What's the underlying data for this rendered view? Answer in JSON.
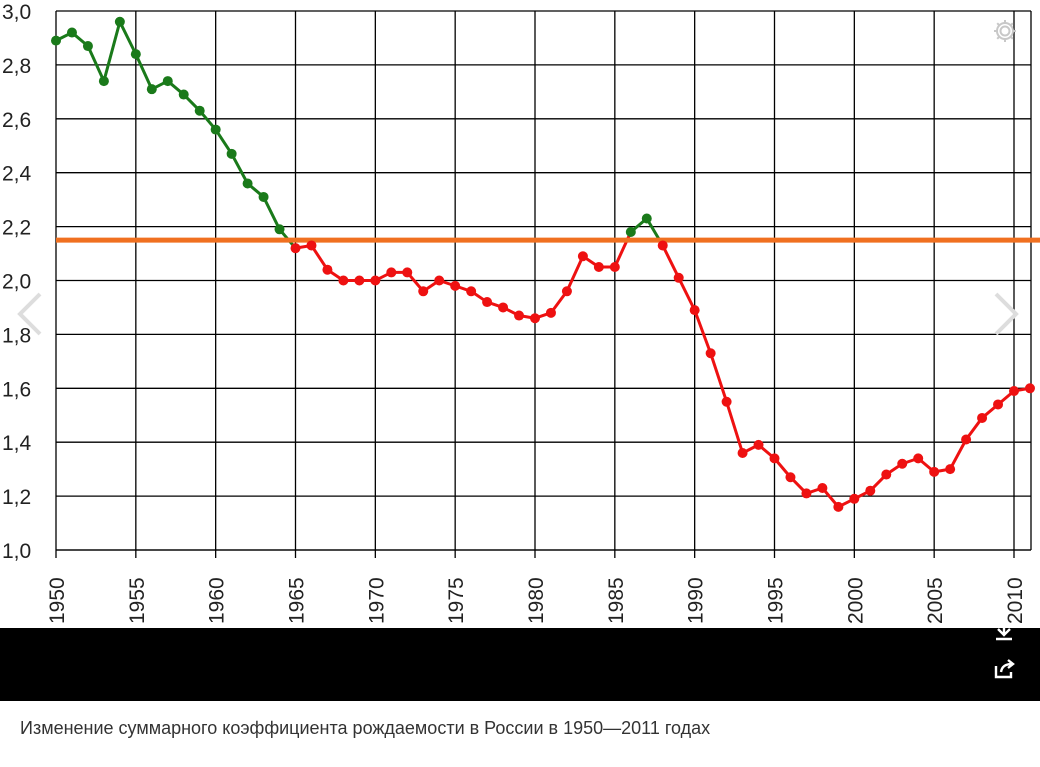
{
  "chart_data": {
    "type": "line",
    "title": "",
    "xlabel": "",
    "ylabel": "",
    "xlim": [
      1950,
      2011
    ],
    "ylim": [
      1.0,
      3.0
    ],
    "grid": true,
    "y_ticks": [
      "1,0",
      "1,2",
      "1,4",
      "1,6",
      "1,8",
      "2,0",
      "2,2",
      "2,4",
      "2,6",
      "2,8",
      "3,0"
    ],
    "x_ticks": [
      "1950",
      "1955",
      "1960",
      "1965",
      "1970",
      "1975",
      "1980",
      "1985",
      "1990",
      "1995",
      "2000",
      "2005",
      "2010"
    ],
    "reference_line": {
      "y": 2.15,
      "color": "#f07020"
    },
    "colors": {
      "above": "#1a7a1a",
      "below": "#ee1111",
      "grid": "#000000"
    },
    "series": [
      {
        "x": [
          1950,
          1951,
          1952,
          1953,
          1954,
          1955,
          1956,
          1957,
          1958,
          1959,
          1960,
          1961,
          1962,
          1963,
          1964,
          1965,
          1966,
          1967,
          1968,
          1969,
          1970,
          1971,
          1972,
          1973,
          1974,
          1975,
          1976,
          1977,
          1978,
          1979,
          1980,
          1981,
          1982,
          1983,
          1984,
          1985,
          1986,
          1987,
          1988,
          1989,
          1990,
          1991,
          1992,
          1993,
          1994,
          1995,
          1996,
          1997,
          1998,
          1999,
          2000,
          2001,
          2002,
          2003,
          2004,
          2005,
          2006,
          2007,
          2008,
          2009,
          2010,
          2011
        ],
        "values": [
          2.89,
          2.92,
          2.87,
          2.74,
          2.96,
          2.84,
          2.71,
          2.74,
          2.69,
          2.63,
          2.56,
          2.47,
          2.36,
          2.31,
          2.19,
          2.12,
          2.13,
          2.04,
          2.0,
          2.0,
          2.0,
          2.03,
          2.03,
          1.96,
          2.0,
          1.98,
          1.96,
          1.92,
          1.9,
          1.87,
          1.86,
          1.88,
          1.96,
          2.09,
          2.05,
          2.05,
          2.18,
          2.23,
          2.13,
          2.01,
          1.89,
          1.73,
          1.55,
          1.36,
          1.39,
          1.34,
          1.27,
          1.21,
          1.23,
          1.16,
          1.19,
          1.22,
          1.28,
          1.32,
          1.34,
          1.29,
          1.3,
          1.41,
          1.49,
          1.54,
          1.59,
          1.6
        ]
      }
    ]
  },
  "caption": "Изменение суммарного коэффициента рождаемости в России в 1950—2011 годах",
  "icons": {
    "gear": "gear-icon",
    "prev": "chevron-left-icon",
    "next": "chevron-right-icon",
    "download": "download-icon",
    "share": "share-icon"
  }
}
